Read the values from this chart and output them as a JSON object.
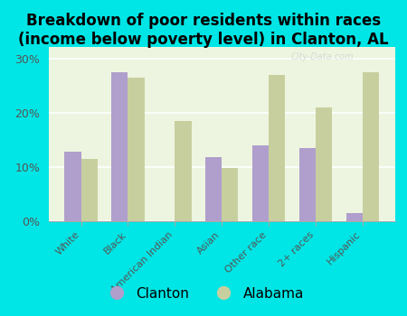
{
  "title": "Breakdown of poor residents within races\n(income below poverty level) in Clanton, AL",
  "categories": [
    "White",
    "Black",
    "American Indian",
    "Asian",
    "Other race",
    "2+ races",
    "Hispanic"
  ],
  "clanton": [
    12.8,
    27.5,
    0,
    11.8,
    14.0,
    13.5,
    1.5
  ],
  "alabama": [
    11.5,
    26.5,
    18.5,
    9.8,
    27.0,
    21.0,
    27.5
  ],
  "clanton_color": "#b09fcc",
  "alabama_color": "#c8cf9f",
  "background_color": "#00e5e5",
  "plot_bg_color": "#edf5e0",
  "ylim": [
    0,
    32
  ],
  "yticks": [
    0,
    10,
    20,
    30
  ],
  "ytick_labels": [
    "0%",
    "10%",
    "20%",
    "30%"
  ],
  "title_fontsize": 12,
  "legend_labels": [
    "Clanton",
    "Alabama"
  ],
  "watermark": "City-Data.com"
}
